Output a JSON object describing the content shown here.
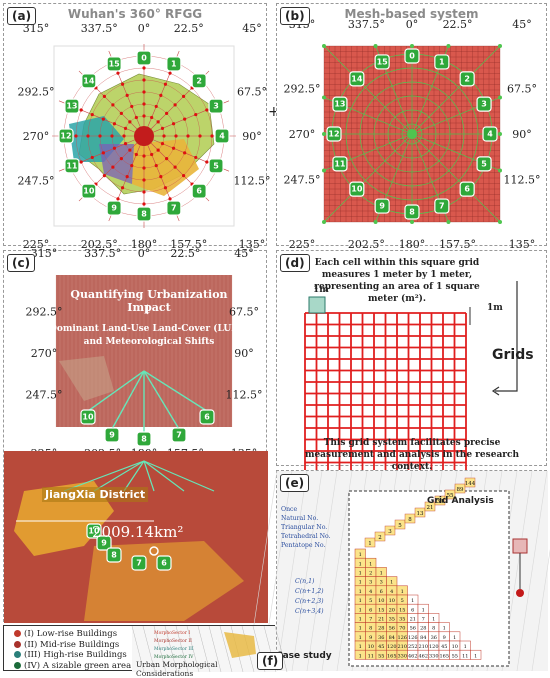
{
  "panel_a": {
    "tag": "(a)",
    "title": "Wuhan's 360° RFGG"
  },
  "panel_b": {
    "tag": "(b)",
    "title": "Mesh-based system"
  },
  "panel_c": {
    "tag": "(c)",
    "line1": "Quantifying Urbanization Impact",
    "line2": "Dominant Land-Use Land-Cover (LULC)",
    "line3": "and Meteorological Shifts",
    "district": "JiangXia District",
    "area": "2009.14km²",
    "badges": [
      "10",
      "9",
      "8",
      "7",
      "6"
    ]
  },
  "panel_d": {
    "tag": "(d)",
    "top_text": "Each cell within this square grid measures 1 meter by 1 meter, representing an area of 1 square meter (m²).",
    "cell_label_1": "1m",
    "cell_label_2": "1m",
    "grids": "Grids",
    "bottom_text": "This grid system facilitates precise measurement and analysis in the research context."
  },
  "panel_e": {
    "tag": "(e)",
    "title": "Grid Analysis",
    "labels": [
      "Once",
      "Natural No.",
      "Triangular No.",
      "Tetrahedral No.",
      "Pentatope No.",
      "C(n,1)",
      "C(n+1,2)",
      "C(n+2,3)",
      "C(n+3,4)"
    ],
    "case_study": "Case study",
    "rows": [
      [
        "1"
      ],
      [
        "1",
        "1"
      ],
      [
        "1",
        "2",
        "1"
      ],
      [
        "1",
        "3",
        "3",
        "1"
      ],
      [
        "1",
        "4",
        "6",
        "4",
        "1"
      ],
      [
        "1",
        "5",
        "10",
        "10",
        "5",
        "1"
      ],
      [
        "1",
        "6",
        "15",
        "20",
        "15",
        "6",
        "1"
      ],
      [
        "1",
        "7",
        "21",
        "35",
        "35",
        "21",
        "7",
        "1"
      ],
      [
        "1",
        "8",
        "28",
        "56",
        "70",
        "56",
        "28",
        "8",
        "1"
      ],
      [
        "1",
        "9",
        "36",
        "84",
        "126",
        "126",
        "84",
        "36",
        "9",
        "1"
      ],
      [
        "1",
        "10",
        "45",
        "120",
        "210",
        "252",
        "210",
        "120",
        "45",
        "10",
        "1"
      ],
      [
        "1",
        "11",
        "55",
        "165",
        "330",
        "462",
        "462",
        "330",
        "165",
        "55",
        "11",
        "1"
      ]
    ],
    "diag": [
      "1",
      "2",
      "3",
      "5",
      "8",
      "13",
      "21",
      "34",
      "55",
      "89",
      "144"
    ]
  },
  "panel_f": {
    "tag": "(f)",
    "legend": [
      "(I) Low-rise Buildings",
      "(II) Mid-rise Buildings",
      "(III) High-rise Buildings",
      "(IV) A sizable green area"
    ],
    "sectors": [
      "MorphoSector I",
      "MorphoSector II",
      "MorphoSector III",
      "MorphoSector IV"
    ],
    "caption": "Urban Morphological Considerations"
  },
  "angles": [
    "0°",
    "22.5°",
    "45°",
    "67.5°",
    "90°",
    "112.5°",
    "135°",
    "157.5°",
    "180°",
    "202.5°",
    "225°",
    "247.5°",
    "270°",
    "292.5°",
    "315°",
    "337.5°"
  ],
  "ring_badges": [
    "0",
    "1",
    "2",
    "3",
    "4",
    "5",
    "6",
    "7",
    "8",
    "9",
    "10",
    "11",
    "12",
    "13",
    "14",
    "15"
  ],
  "colors": {
    "badge": "#2fa83a",
    "grid_red": "#e01f1f",
    "mesh_fill": "#d9584d",
    "map_green": "#b9d46a",
    "legend": [
      "#c0392b",
      "#a8322b",
      "#2a7f7a",
      "#1c6b3a"
    ]
  }
}
